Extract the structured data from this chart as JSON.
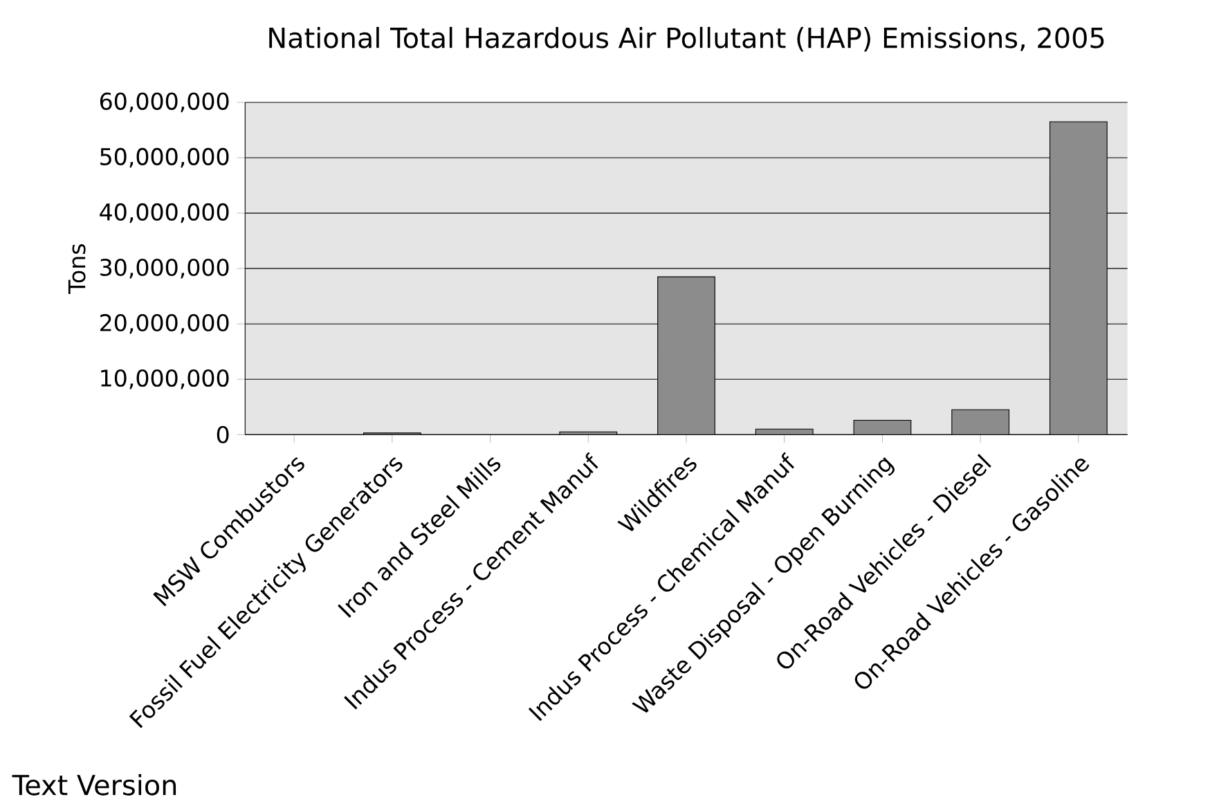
{
  "chart_data": {
    "type": "bar",
    "title": "National Total Hazardous Air Pollutant (HAP) Emissions, 2005",
    "ylabel": "Tons",
    "categories": [
      "MSW Combustors",
      "Fossil Fuel Electricity Generators",
      "Iron and Steel Mills",
      "Indus Process - Cement Manuf",
      "Wildfires",
      "Indus Process - Chemical Manuf",
      "Waste Disposal - Open Burning",
      "On-Road Vehicles - Diesel",
      "On-Road Vehicles - Gasoline"
    ],
    "values": [
      null,
      300000,
      null,
      500000,
      28500000,
      1000000,
      2600000,
      4500000,
      56500000
    ],
    "color": "#8c8c8c",
    "ylim": [
      0,
      60000000
    ],
    "yticks": [
      {
        "value": 0,
        "label": "0"
      },
      {
        "value": 10000000,
        "label": "10,000,000"
      },
      {
        "value": 20000000,
        "label": "20,000,000"
      },
      {
        "value": 30000000,
        "label": "30,000,000"
      },
      {
        "value": 40000000,
        "label": "40,000,000"
      },
      {
        "value": 50000000,
        "label": "50,000,000"
      },
      {
        "value": 60000000,
        "label": "60,000,000"
      }
    ],
    "grid": "y",
    "annotations": [
      "Text Version"
    ]
  }
}
